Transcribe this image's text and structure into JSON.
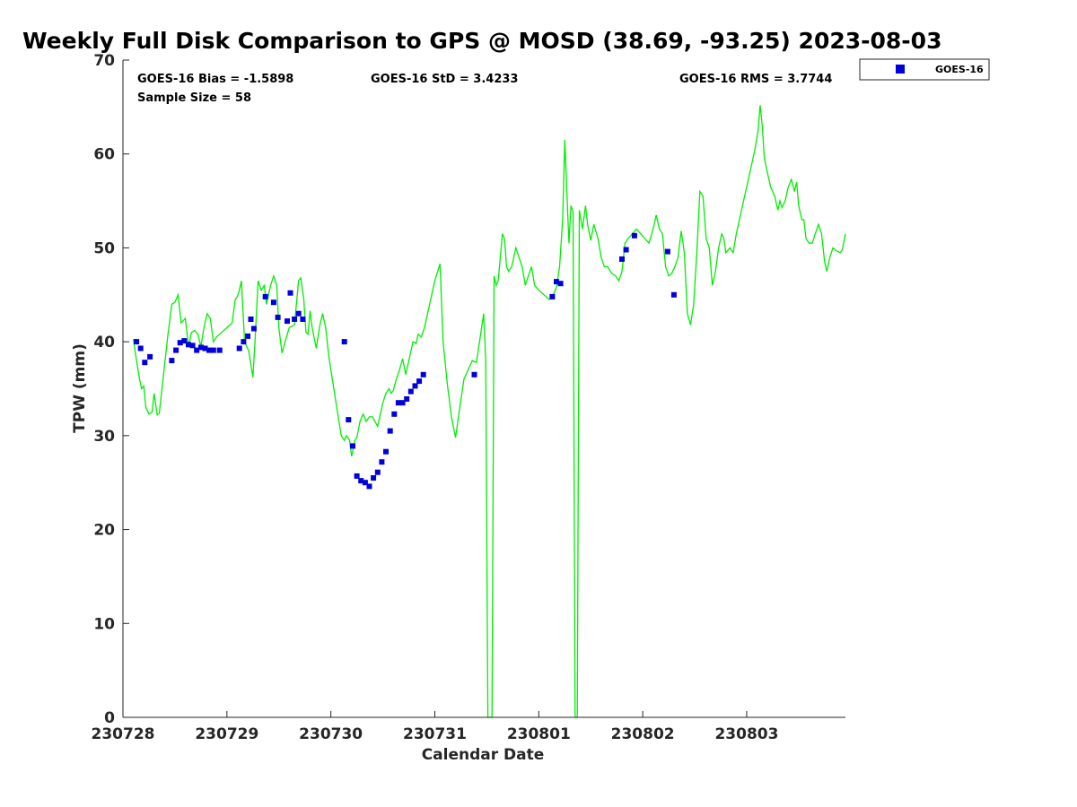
{
  "chart_data": {
    "type": "line",
    "title": "Weekly Full Disk Comparison to GPS @ MOSD (38.69, -93.25) 2023-08-03",
    "xlabel": "Calendar Date",
    "ylabel": "TPW (mm)",
    "xlim": [
      0,
      6.95
    ],
    "ylim": [
      0,
      70
    ],
    "x_ticks": [
      {
        "value": 0,
        "label": "230728"
      },
      {
        "value": 1,
        "label": "230729"
      },
      {
        "value": 2,
        "label": "230730"
      },
      {
        "value": 3,
        "label": "230731"
      },
      {
        "value": 4,
        "label": "230801"
      },
      {
        "value": 5,
        "label": "230802"
      },
      {
        "value": 6,
        "label": "230803"
      }
    ],
    "y_ticks": [
      0,
      10,
      20,
      30,
      40,
      50,
      60,
      70
    ],
    "stats": {
      "bias": "GOES-16 Bias = -1.5898",
      "sample_size": "Sample Size = 58",
      "std": "GOES-16 StD = 3.4233",
      "rms": "GOES-16 RMS = 3.7744"
    },
    "legend": {
      "position": "top-right",
      "entries": [
        "GOES-16"
      ]
    },
    "colors": {
      "gps_line": "#00ee00",
      "goes_marker": "#0000dd",
      "axis": "#262626"
    },
    "series": [
      {
        "kind": "line",
        "color": "#00ee00",
        "points": [
          [
            0.1,
            40.3
          ],
          [
            0.13,
            38.0
          ],
          [
            0.16,
            36.0
          ],
          [
            0.18,
            35.0
          ],
          [
            0.2,
            35.3
          ],
          [
            0.22,
            33.0
          ],
          [
            0.25,
            32.3
          ],
          [
            0.28,
            32.5
          ],
          [
            0.3,
            34.5
          ],
          [
            0.33,
            32.2
          ],
          [
            0.35,
            32.4
          ],
          [
            0.39,
            36.5
          ],
          [
            0.43,
            40.5
          ],
          [
            0.47,
            44.0
          ],
          [
            0.5,
            44.2
          ],
          [
            0.53,
            45.0
          ],
          [
            0.56,
            42.0
          ],
          [
            0.6,
            42.5
          ],
          [
            0.63,
            39.5
          ],
          [
            0.66,
            41.0
          ],
          [
            0.69,
            41.2
          ],
          [
            0.72,
            40.8
          ],
          [
            0.75,
            39.5
          ],
          [
            0.78,
            41.5
          ],
          [
            0.81,
            43.0
          ],
          [
            0.84,
            42.5
          ],
          [
            0.87,
            40.0
          ],
          [
            0.9,
            40.5
          ],
          [
            0.95,
            41.0
          ],
          [
            1.0,
            41.5
          ],
          [
            1.05,
            42.0
          ],
          [
            1.08,
            44.5
          ],
          [
            1.1,
            44.8
          ],
          [
            1.12,
            45.5
          ],
          [
            1.14,
            46.5
          ],
          [
            1.17,
            40.0
          ],
          [
            1.21,
            39.0
          ],
          [
            1.25,
            36.2
          ],
          [
            1.27,
            40.0
          ],
          [
            1.3,
            46.5
          ],
          [
            1.33,
            45.5
          ],
          [
            1.36,
            46.0
          ],
          [
            1.38,
            44.0
          ],
          [
            1.42,
            46.0
          ],
          [
            1.45,
            47.0
          ],
          [
            1.48,
            46.0
          ],
          [
            1.5,
            41.5
          ],
          [
            1.53,
            38.8
          ],
          [
            1.56,
            40.0
          ],
          [
            1.6,
            41.5
          ],
          [
            1.65,
            41.8
          ],
          [
            1.69,
            46.5
          ],
          [
            1.71,
            46.8
          ],
          [
            1.74,
            44.5
          ],
          [
            1.76,
            41.0
          ],
          [
            1.78,
            40.8
          ],
          [
            1.8,
            43.3
          ],
          [
            1.82,
            41.5
          ],
          [
            1.86,
            39.3
          ],
          [
            1.89,
            41.5
          ],
          [
            1.92,
            43.0
          ],
          [
            1.95,
            41.5
          ],
          [
            1.98,
            38.5
          ],
          [
            2.0,
            37.0
          ],
          [
            2.05,
            33.5
          ],
          [
            2.1,
            30.0
          ],
          [
            2.13,
            29.5
          ],
          [
            2.15,
            30.0
          ],
          [
            2.18,
            29.5
          ],
          [
            2.2,
            27.8
          ],
          [
            2.23,
            29.5
          ],
          [
            2.25,
            29.8
          ],
          [
            2.28,
            31.5
          ],
          [
            2.31,
            32.3
          ],
          [
            2.34,
            31.5
          ],
          [
            2.37,
            32.0
          ],
          [
            2.4,
            32.0
          ],
          [
            2.45,
            31.0
          ],
          [
            2.5,
            33.5
          ],
          [
            2.53,
            34.5
          ],
          [
            2.56,
            35.0
          ],
          [
            2.58,
            34.5
          ],
          [
            2.6,
            34.8
          ],
          [
            2.63,
            36.0
          ],
          [
            2.66,
            37.0
          ],
          [
            2.69,
            38.2
          ],
          [
            2.72,
            36.5
          ],
          [
            2.75,
            38.0
          ],
          [
            2.79,
            40.0
          ],
          [
            2.82,
            39.8
          ],
          [
            2.84,
            40.8
          ],
          [
            2.87,
            40.5
          ],
          [
            2.9,
            41.5
          ],
          [
            2.95,
            44.0
          ],
          [
            3.0,
            46.5
          ],
          [
            3.05,
            48.3
          ],
          [
            3.08,
            40.0
          ],
          [
            3.12,
            35.5
          ],
          [
            3.16,
            32.0
          ],
          [
            3.2,
            29.8
          ],
          [
            3.24,
            33.0
          ],
          [
            3.28,
            36.0
          ],
          [
            3.32,
            37.0
          ],
          [
            3.36,
            38.0
          ],
          [
            3.4,
            37.8
          ],
          [
            3.43,
            40.0
          ],
          [
            3.47,
            43.0
          ],
          [
            3.49,
            38.0
          ],
          [
            3.51,
            0.0
          ],
          [
            3.53,
            0.0
          ],
          [
            3.55,
            0.0
          ],
          [
            3.57,
            47.0
          ],
          [
            3.59,
            46.0
          ],
          [
            3.61,
            46.5
          ],
          [
            3.65,
            51.5
          ],
          [
            3.67,
            51.0
          ],
          [
            3.69,
            48.0
          ],
          [
            3.71,
            47.5
          ],
          [
            3.74,
            48.0
          ],
          [
            3.78,
            50.0
          ],
          [
            3.81,
            49.0
          ],
          [
            3.84,
            48.0
          ],
          [
            3.87,
            46.0
          ],
          [
            3.9,
            47.0
          ],
          [
            3.93,
            48.0
          ],
          [
            3.96,
            46.0
          ],
          [
            4.0,
            45.5
          ],
          [
            4.05,
            45.0
          ],
          [
            4.1,
            44.5
          ],
          [
            4.14,
            45.0
          ],
          [
            4.17,
            45.8
          ],
          [
            4.2,
            48.0
          ],
          [
            4.23,
            53.0
          ],
          [
            4.25,
            61.5
          ],
          [
            4.27,
            56.0
          ],
          [
            4.29,
            50.5
          ],
          [
            4.31,
            54.5
          ],
          [
            4.33,
            53.8
          ],
          [
            4.35,
            0.0
          ],
          [
            4.37,
            0.0
          ],
          [
            4.39,
            54.0
          ],
          [
            4.42,
            52.0
          ],
          [
            4.45,
            54.5
          ],
          [
            4.47,
            52.5
          ],
          [
            4.5,
            50.8
          ],
          [
            4.53,
            52.5
          ],
          [
            4.57,
            51.0
          ],
          [
            4.6,
            49.0
          ],
          [
            4.63,
            48.0
          ],
          [
            4.66,
            48.0
          ],
          [
            4.7,
            47.3
          ],
          [
            4.74,
            47.0
          ],
          [
            4.77,
            46.5
          ],
          [
            4.8,
            47.5
          ],
          [
            4.83,
            50.5
          ],
          [
            4.86,
            51.0
          ],
          [
            4.9,
            51.5
          ],
          [
            4.94,
            52.0
          ],
          [
            4.98,
            51.5
          ],
          [
            5.02,
            51.0
          ],
          [
            5.06,
            50.5
          ],
          [
            5.1,
            52.0
          ],
          [
            5.13,
            53.5
          ],
          [
            5.16,
            52.0
          ],
          [
            5.19,
            51.5
          ],
          [
            5.22,
            48.0
          ],
          [
            5.25,
            47.0
          ],
          [
            5.28,
            47.3
          ],
          [
            5.31,
            48.0
          ],
          [
            5.34,
            49.0
          ],
          [
            5.37,
            51.8
          ],
          [
            5.4,
            49.5
          ],
          [
            5.43,
            43.0
          ],
          [
            5.46,
            41.8
          ],
          [
            5.49,
            44.0
          ],
          [
            5.52,
            49.5
          ],
          [
            5.55,
            56.0
          ],
          [
            5.58,
            55.5
          ],
          [
            5.61,
            51.0
          ],
          [
            5.64,
            50.0
          ],
          [
            5.67,
            46.0
          ],
          [
            5.7,
            47.5
          ],
          [
            5.73,
            50.0
          ],
          [
            5.76,
            51.5
          ],
          [
            5.78,
            51.0
          ],
          [
            5.8,
            49.5
          ],
          [
            5.84,
            50.0
          ],
          [
            5.87,
            49.5
          ],
          [
            5.9,
            51.5
          ],
          [
            5.93,
            53.0
          ],
          [
            5.96,
            54.5
          ],
          [
            6.0,
            56.5
          ],
          [
            6.04,
            58.5
          ],
          [
            6.08,
            60.5
          ],
          [
            6.11,
            62.5
          ],
          [
            6.13,
            65.2
          ],
          [
            6.15,
            63.0
          ],
          [
            6.17,
            59.5
          ],
          [
            6.2,
            58.0
          ],
          [
            6.23,
            56.5
          ],
          [
            6.27,
            55.5
          ],
          [
            6.3,
            54.0
          ],
          [
            6.32,
            55.0
          ],
          [
            6.34,
            54.3
          ],
          [
            6.37,
            55.0
          ],
          [
            6.4,
            56.5
          ],
          [
            6.43,
            57.3
          ],
          [
            6.46,
            56.0
          ],
          [
            6.48,
            57.0
          ],
          [
            6.5,
            54.5
          ],
          [
            6.53,
            53.0
          ],
          [
            6.55,
            53.0
          ],
          [
            6.57,
            51.0
          ],
          [
            6.6,
            50.5
          ],
          [
            6.63,
            50.5
          ],
          [
            6.66,
            51.5
          ],
          [
            6.69,
            52.5
          ],
          [
            6.72,
            51.5
          ],
          [
            6.75,
            48.5
          ],
          [
            6.77,
            47.5
          ],
          [
            6.8,
            49.0
          ],
          [
            6.83,
            50.0
          ],
          [
            6.86,
            49.7
          ],
          [
            6.9,
            49.5
          ],
          [
            6.92,
            49.8
          ],
          [
            6.95,
            51.5
          ]
        ]
      },
      {
        "name": "GOES-16",
        "kind": "scatter",
        "color": "#0000dd",
        "points": [
          [
            0.13,
            40.0
          ],
          [
            0.17,
            39.3
          ],
          [
            0.21,
            37.8
          ],
          [
            0.26,
            38.4
          ],
          [
            0.47,
            38.0
          ],
          [
            0.51,
            39.1
          ],
          [
            0.55,
            39.9
          ],
          [
            0.59,
            40.1
          ],
          [
            0.63,
            39.7
          ],
          [
            0.67,
            39.6
          ],
          [
            0.71,
            39.1
          ],
          [
            0.75,
            39.4
          ],
          [
            0.79,
            39.3
          ],
          [
            0.83,
            39.1
          ],
          [
            0.87,
            39.1
          ],
          [
            0.93,
            39.1
          ],
          [
            1.12,
            39.3
          ],
          [
            1.16,
            40.0
          ],
          [
            1.2,
            40.6
          ],
          [
            1.23,
            42.4
          ],
          [
            1.26,
            41.4
          ],
          [
            1.37,
            44.8
          ],
          [
            1.45,
            44.2
          ],
          [
            1.49,
            42.6
          ],
          [
            1.58,
            42.2
          ],
          [
            1.61,
            45.2
          ],
          [
            1.65,
            42.4
          ],
          [
            1.69,
            43.0
          ],
          [
            1.73,
            42.4
          ],
          [
            2.13,
            40.0
          ],
          [
            2.17,
            31.7
          ],
          [
            2.21,
            28.9
          ],
          [
            2.25,
            25.7
          ],
          [
            2.29,
            25.2
          ],
          [
            2.33,
            25.0
          ],
          [
            2.37,
            24.6
          ],
          [
            2.41,
            25.5
          ],
          [
            2.45,
            26.1
          ],
          [
            2.49,
            27.2
          ],
          [
            2.53,
            28.3
          ],
          [
            2.57,
            30.5
          ],
          [
            2.61,
            32.3
          ],
          [
            2.65,
            33.5
          ],
          [
            2.69,
            33.5
          ],
          [
            2.73,
            33.9
          ],
          [
            2.77,
            34.7
          ],
          [
            2.81,
            35.3
          ],
          [
            2.85,
            35.8
          ],
          [
            2.89,
            36.5
          ],
          [
            3.38,
            36.5
          ],
          [
            4.13,
            44.8
          ],
          [
            4.17,
            46.4
          ],
          [
            4.21,
            46.2
          ],
          [
            4.8,
            48.8
          ],
          [
            4.84,
            49.8
          ],
          [
            4.92,
            51.3
          ],
          [
            5.24,
            49.6
          ],
          [
            5.3,
            45.0
          ]
        ]
      }
    ]
  }
}
